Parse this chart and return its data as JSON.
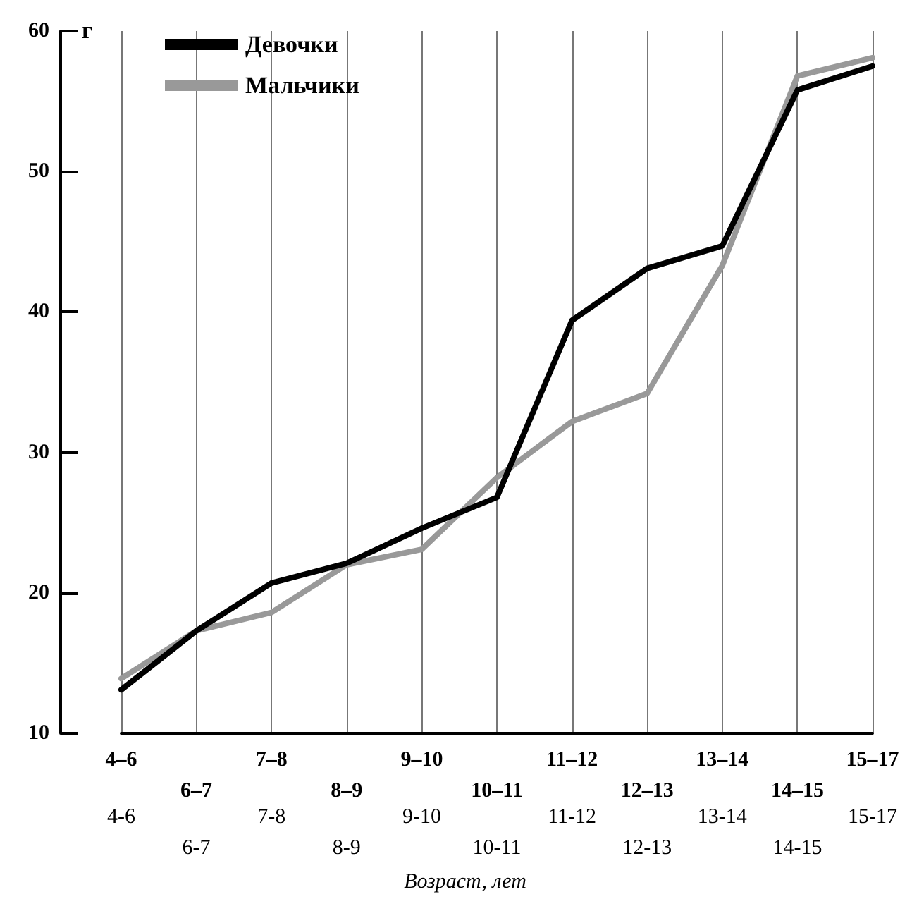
{
  "chart_data": {
    "type": "line",
    "ylabel": "г",
    "xlabel": "Возраст, лет",
    "categories": [
      "4–6",
      "6–7",
      "7–8",
      "8–9",
      "9–10",
      "10–11",
      "11–12",
      "12–13",
      "13–14",
      "14–15",
      "15–17"
    ],
    "series": [
      {
        "name": "Девочки",
        "color": "#000000",
        "values": [
          13.1,
          17.3,
          20.7,
          22.1,
          24.6,
          26.8,
          39.4,
          43.1,
          44.7,
          55.8,
          57.5
        ]
      },
      {
        "name": "Мальчики",
        "color": "#999999",
        "values": [
          13.9,
          17.3,
          18.6,
          22.0,
          23.1,
          28.2,
          32.2,
          34.2,
          43.3,
          56.8,
          58.1
        ]
      }
    ],
    "ylim": [
      10,
      60
    ],
    "yticks": [
      10,
      20,
      30,
      40,
      50,
      60
    ],
    "grid": "x",
    "legend": "top left",
    "marker": "none",
    "line_style": "solid",
    "annotations": [
      "4-6",
      "6-7",
      "7-8",
      "8-9",
      "9-10",
      "10-11",
      "11-12",
      "12-13",
      "13-14",
      "14-15",
      "15-17"
    ]
  }
}
